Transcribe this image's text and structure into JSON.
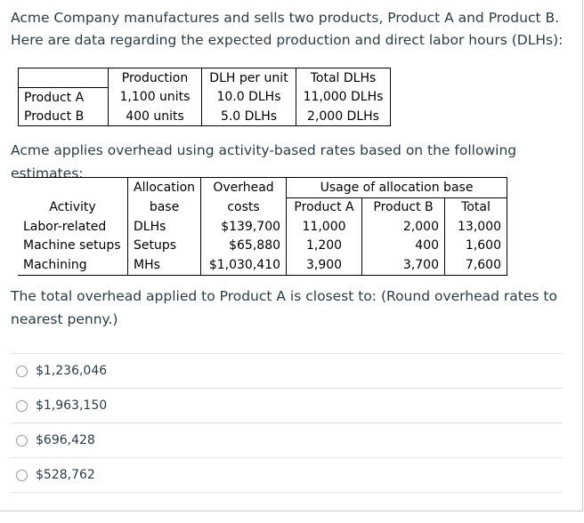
{
  "intro": {
    "line1": "Acme Company manufactures and sells two products, Product A and Product B.",
    "line2": "Here are data regarding the expected production and direct labor hours (DLHs):"
  },
  "production_table": {
    "headers": [
      "",
      "Production",
      "DLH per unit",
      "Total DLHs"
    ],
    "rows": [
      [
        "Product A",
        "1,100 units",
        "10.0 DLHs",
        "11,000 DLHs"
      ],
      [
        "Product B",
        "400 units",
        "5.0 DLHs",
        "2,000 DLHs"
      ]
    ]
  },
  "abc_intro": "Acme applies overhead using activity-based rates based on the following estimates:",
  "activity_table": {
    "header_row1": [
      "",
      "Allocation",
      "Overhead",
      "Usage of allocation base"
    ],
    "header_row2": [
      "Activity",
      "base",
      "costs",
      "Product A",
      "Product B",
      "Total"
    ],
    "rows": [
      [
        "Labor-related",
        "DLHs",
        "$139,700",
        "11,000",
        "2,000",
        "13,000"
      ],
      [
        "Machine setups",
        "Setups",
        "$65,880",
        "1,200",
        "400",
        "1,600"
      ],
      [
        "Machining",
        "MHs",
        "$1,030,410",
        "3,900",
        "3,700",
        "7,600"
      ]
    ]
  },
  "question": {
    "line1": "The total overhead applied to Product A is closest to: (Round overhead rates to",
    "line2": "nearest penny.)"
  },
  "options": [
    "$1,236,046",
    "$1,963,150",
    "$696,428",
    "$528,762"
  ]
}
